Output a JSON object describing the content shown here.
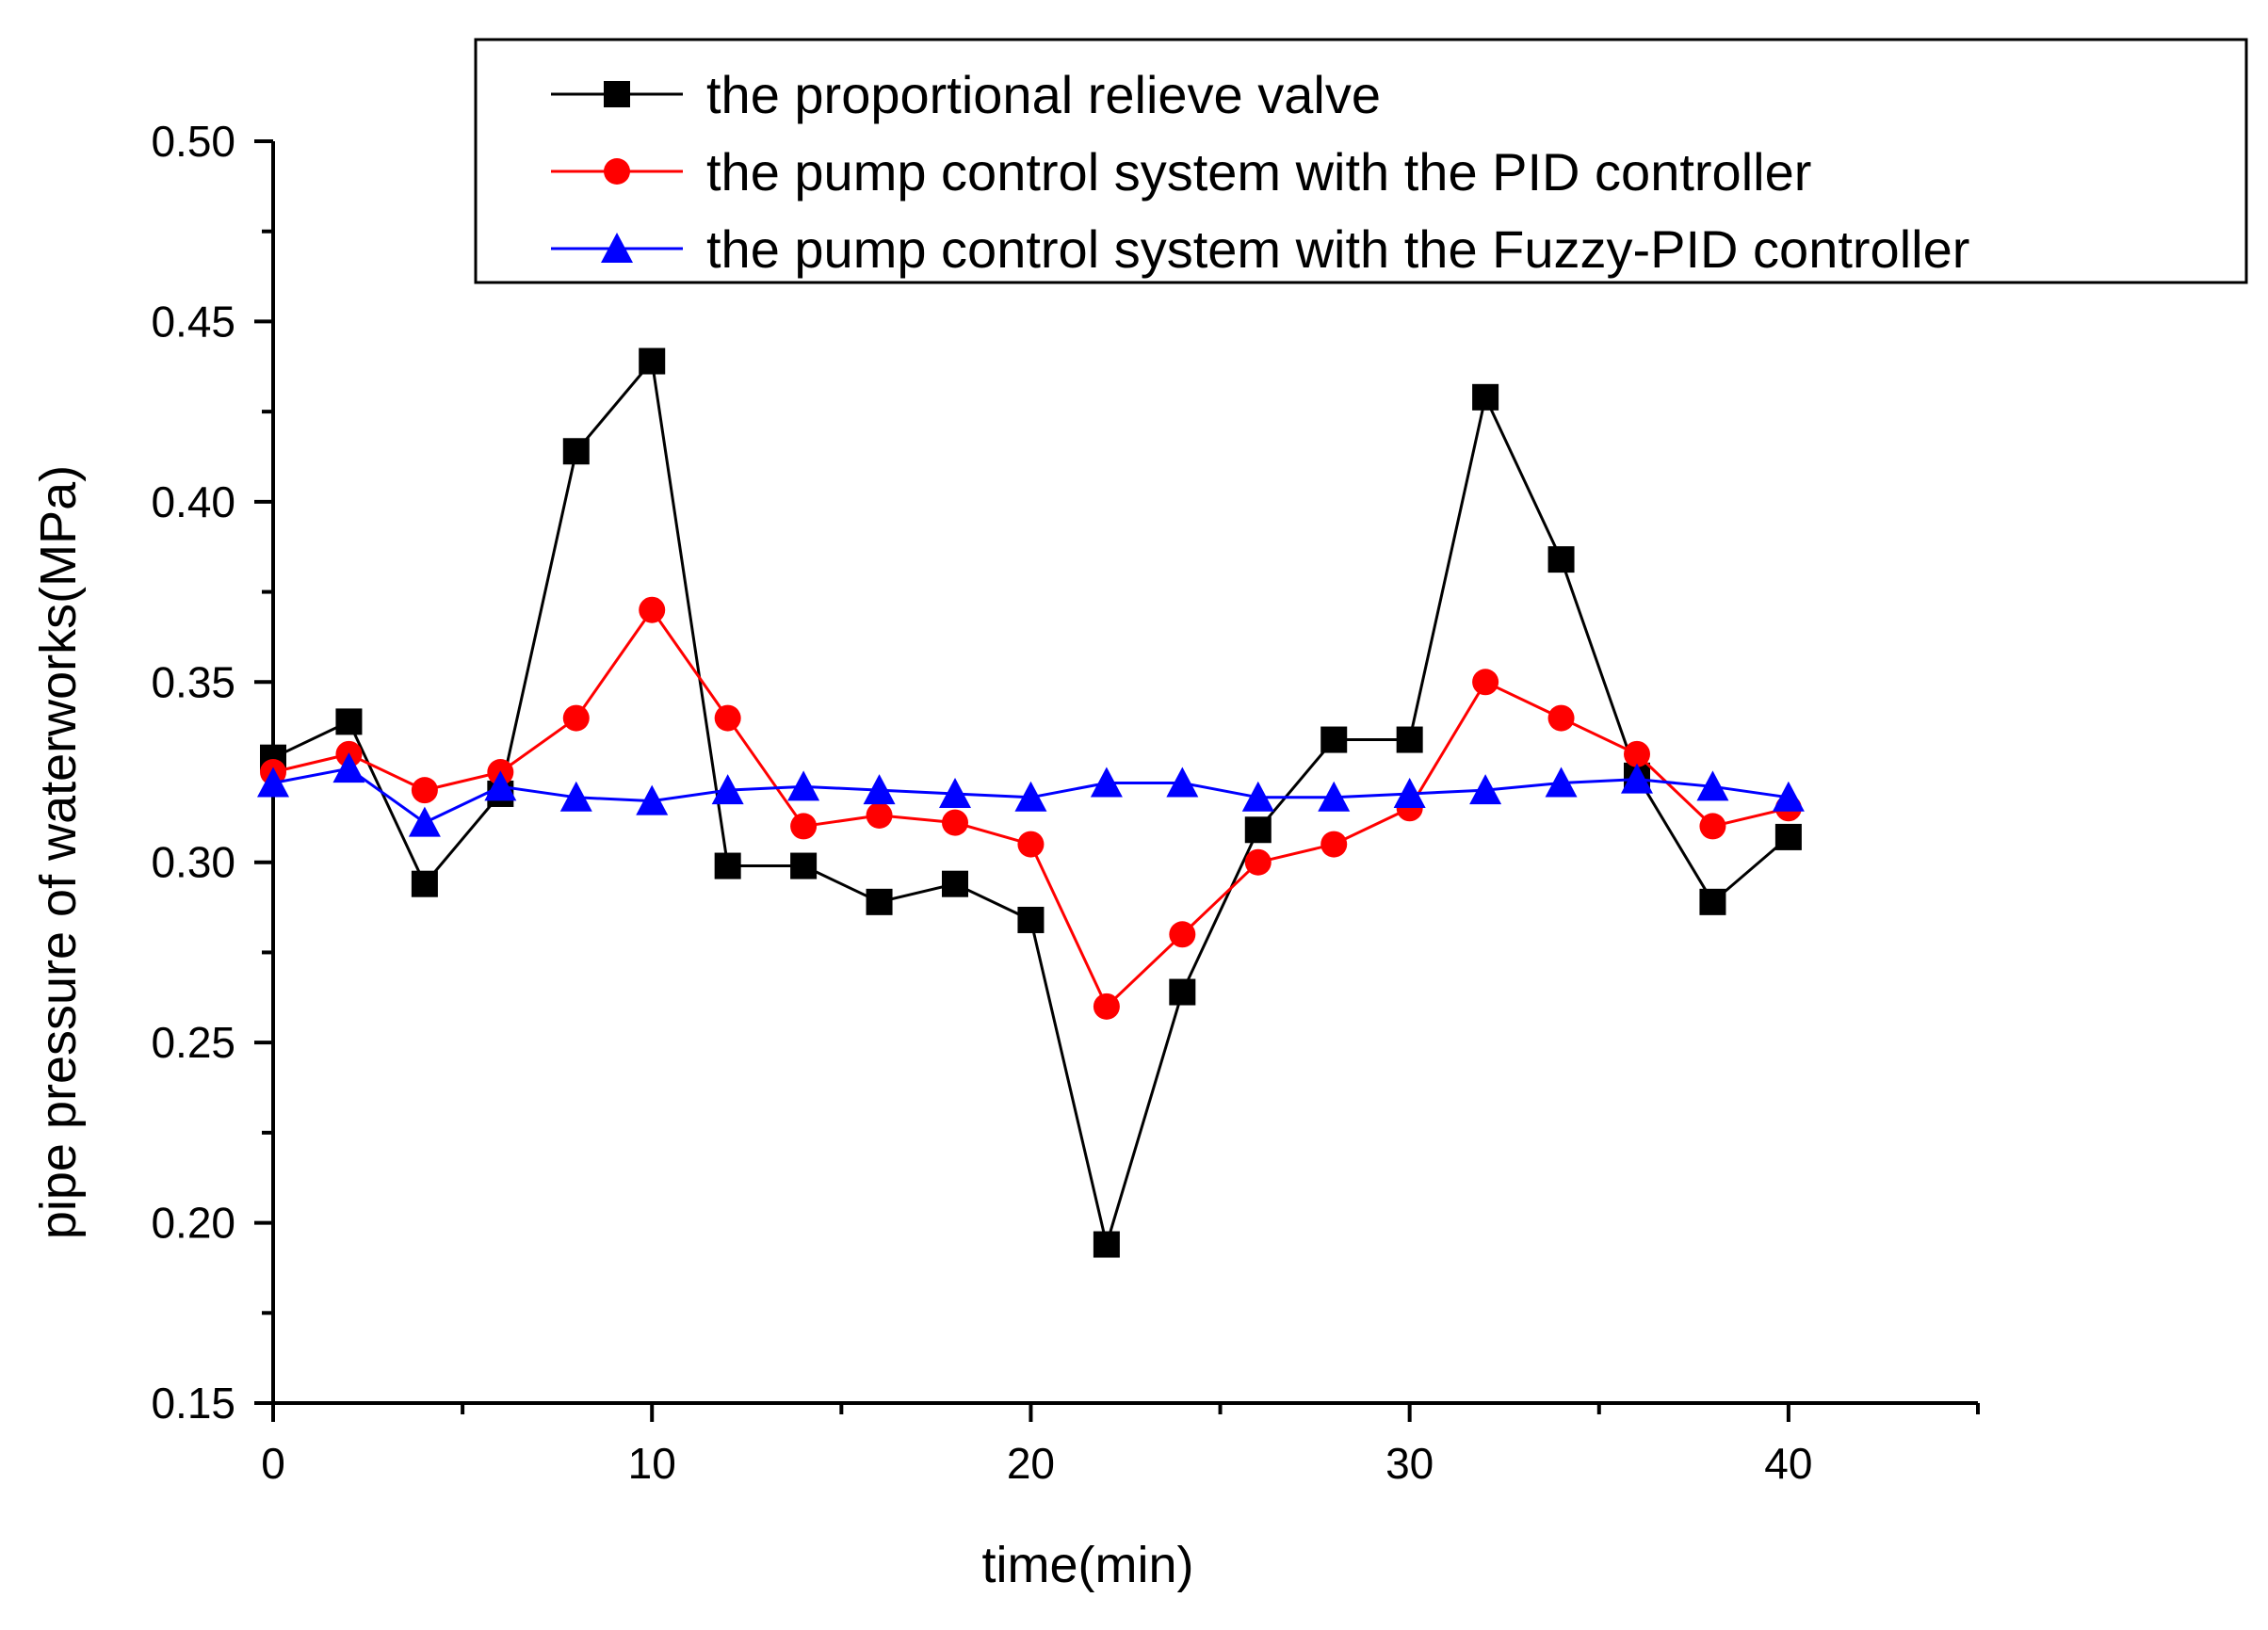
{
  "chart_data": {
    "type": "line",
    "title": "",
    "xlabel": "time(min)",
    "ylabel": "pipe pressure of waterworks(MPa)",
    "xlim": [
      0,
      45
    ],
    "ylim": [
      0.15,
      0.5
    ],
    "x_ticks": [
      0,
      10,
      20,
      30,
      40
    ],
    "x_tick_labels": [
      "0",
      "10",
      "20",
      "30",
      "40"
    ],
    "x_minor_ticks": [
      5,
      15,
      25,
      35,
      45
    ],
    "y_ticks": [
      0.15,
      0.2,
      0.25,
      0.3,
      0.35,
      0.4,
      0.45,
      0.5
    ],
    "y_tick_labels": [
      "0.15",
      "0.20",
      "0.25",
      "0.30",
      "0.35",
      "0.40",
      "0.45",
      "0.50"
    ],
    "y_minor_ticks": [
      0.175,
      0.225,
      0.275,
      0.325,
      0.375,
      0.425,
      0.475
    ],
    "grid": false,
    "legend_position": "top-right",
    "x": [
      0,
      2,
      4,
      6,
      8,
      10,
      12,
      14,
      16,
      18,
      20,
      22,
      24,
      26,
      28,
      30,
      32,
      34,
      36,
      38,
      40
    ],
    "series": [
      {
        "name": "the proportional relieve valve",
        "color": "#000000",
        "marker": "square",
        "values": [
          0.329,
          0.339,
          0.294,
          0.319,
          0.414,
          0.439,
          0.299,
          0.299,
          0.289,
          0.294,
          0.284,
          0.194,
          0.264,
          0.309,
          0.334,
          0.334,
          0.429,
          0.384,
          0.324,
          0.289,
          0.307
        ]
      },
      {
        "name": "the pump control system with the PID controller",
        "color": "#ff0000",
        "marker": "circle",
        "values": [
          0.325,
          0.33,
          0.32,
          0.325,
          0.34,
          0.37,
          0.34,
          0.31,
          0.313,
          0.311,
          0.305,
          0.26,
          0.28,
          0.3,
          0.305,
          0.315,
          0.35,
          0.34,
          0.33,
          0.31,
          0.315
        ]
      },
      {
        "name": "the pump control system with the Fuzzy-PID controller",
        "color": "#0000ff",
        "marker": "triangle",
        "values": [
          0.322,
          0.326,
          0.311,
          0.321,
          0.318,
          0.317,
          0.32,
          0.321,
          0.32,
          0.319,
          0.318,
          0.322,
          0.322,
          0.318,
          0.318,
          0.319,
          0.32,
          0.322,
          0.323,
          0.321,
          0.318
        ]
      }
    ]
  }
}
